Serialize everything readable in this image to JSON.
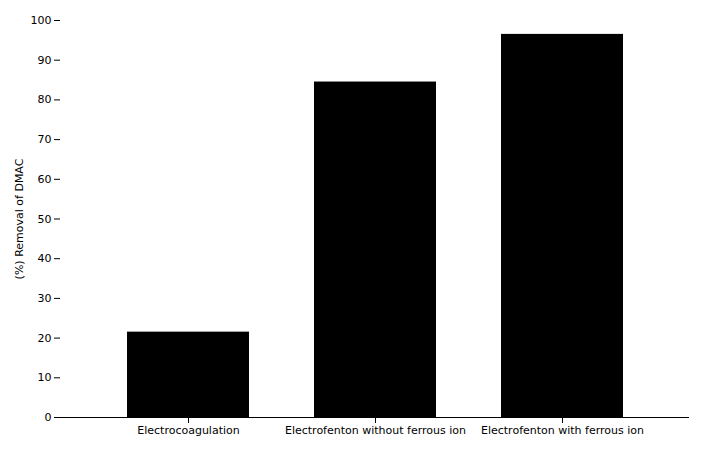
{
  "chart_data": {
    "type": "bar",
    "categories": [
      "Electrocoagulation",
      "Electrofenton without ferrous ion",
      "Electrofenton with ferrous ion"
    ],
    "values": [
      21.5,
      84.5,
      96.5
    ],
    "ylabel": "(%) Removal of DMAC",
    "ylim": [
      0,
      100
    ],
    "yticks": [
      0,
      10,
      20,
      30,
      40,
      50,
      60,
      70,
      80,
      90,
      100
    ],
    "grid": false
  }
}
